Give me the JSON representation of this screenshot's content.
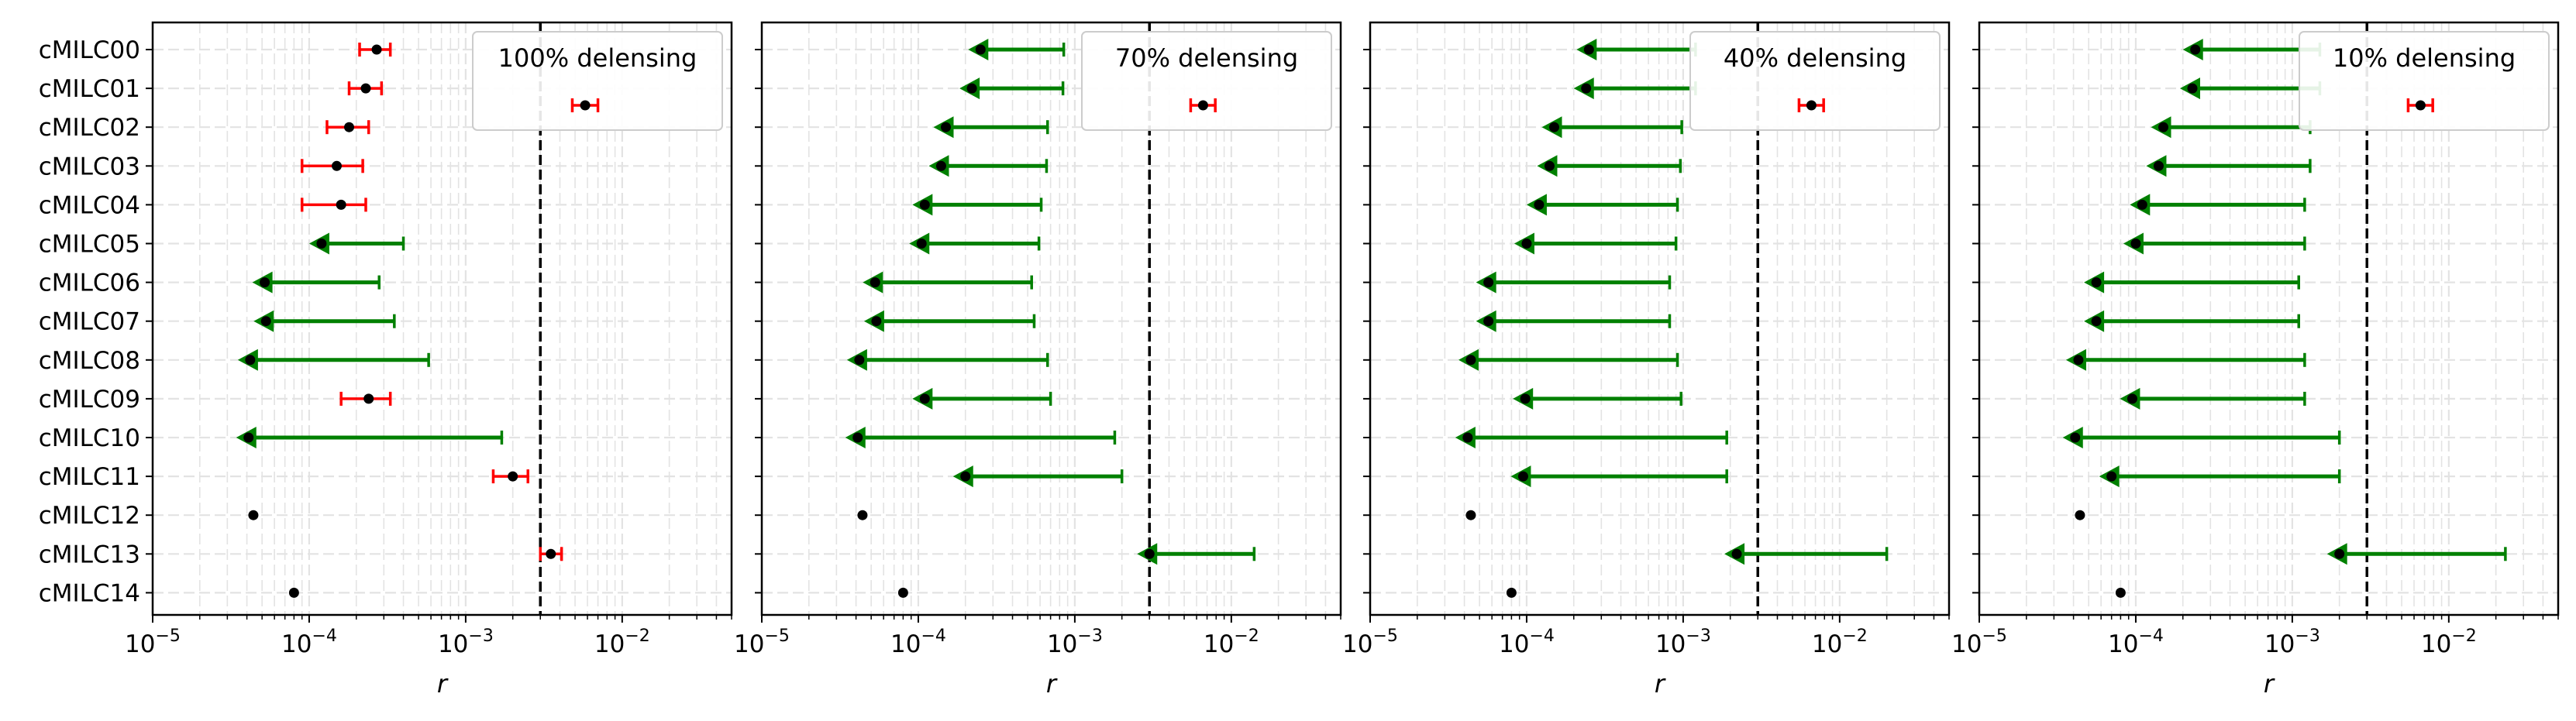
{
  "chart_data": {
    "type": "errorbar-forest",
    "shared": {
      "xscale": "log",
      "xlim": [
        1e-05,
        0.05
      ],
      "xlabel": "r",
      "x_tick_labels": [
        {
          "base": "10",
          "exp": "−5"
        },
        {
          "base": "10",
          "exp": "−4"
        },
        {
          "base": "10",
          "exp": "−3"
        },
        {
          "base": "10",
          "exp": "−2"
        }
      ],
      "reference_line_x": 0.003,
      "reference_line_style": "dashed",
      "categories": [
        "cMILC00",
        "cMILC01",
        "cMILC02",
        "cMILC03",
        "cMILC04",
        "cMILC05",
        "cMILC06",
        "cMILC07",
        "cMILC08",
        "cMILC09",
        "cMILC10",
        "cMILC11",
        "cMILC12",
        "cMILC13",
        "cMILC14"
      ],
      "grid": true,
      "colors": {
        "detection": "#ff0000",
        "upper_limit": "#008000",
        "point": "#000000",
        "reference": "#000000",
        "grid": "#e3e3e3"
      }
    },
    "panels": [
      {
        "legend_label": "100% delensing",
        "legend_position": "top-right",
        "rows": [
          {
            "name": "cMILC00",
            "kind": "detection",
            "value": 0.00027,
            "low": 0.00021,
            "high": 0.00033
          },
          {
            "name": "cMILC01",
            "kind": "detection",
            "value": 0.00023,
            "low": 0.00018,
            "high": 0.00029
          },
          {
            "name": "cMILC02",
            "kind": "detection",
            "value": 0.00018,
            "low": 0.00013,
            "high": 0.00024
          },
          {
            "name": "cMILC03",
            "kind": "detection",
            "value": 0.00015,
            "low": 9e-05,
            "high": 0.00022
          },
          {
            "name": "cMILC04",
            "kind": "detection",
            "value": 0.00016,
            "low": 9e-05,
            "high": 0.00023
          },
          {
            "name": "cMILC05",
            "kind": "upper_limit",
            "value": 0.00012,
            "limit": 0.0004
          },
          {
            "name": "cMILC06",
            "kind": "upper_limit",
            "value": 5.2e-05,
            "limit": 0.00028
          },
          {
            "name": "cMILC07",
            "kind": "upper_limit",
            "value": 5.3e-05,
            "limit": 0.00035
          },
          {
            "name": "cMILC08",
            "kind": "upper_limit",
            "value": 4.2e-05,
            "limit": 0.00058
          },
          {
            "name": "cMILC09",
            "kind": "detection",
            "value": 0.00024,
            "low": 0.00016,
            "high": 0.00033
          },
          {
            "name": "cMILC10",
            "kind": "upper_limit",
            "value": 4.1e-05,
            "limit": 0.0017
          },
          {
            "name": "cMILC11",
            "kind": "detection",
            "value": 0.002,
            "low": 0.0015,
            "high": 0.0025
          },
          {
            "name": "cMILC12",
            "kind": "point",
            "value": 4.4e-05
          },
          {
            "name": "cMILC13",
            "kind": "detection",
            "value": 0.0035,
            "low": 0.003,
            "high": 0.0041
          },
          {
            "name": "cMILC14",
            "kind": "point",
            "value": 8e-05
          }
        ],
        "legend_marker": {
          "kind": "detection",
          "value": 0.0058,
          "low": 0.0048,
          "high": 0.007
        }
      },
      {
        "legend_label": "70% delensing",
        "legend_position": "top-right",
        "rows": [
          {
            "name": "cMILC00",
            "kind": "upper_limit",
            "value": 0.00025,
            "limit": 0.00085
          },
          {
            "name": "cMILC01",
            "kind": "upper_limit",
            "value": 0.00022,
            "limit": 0.00084
          },
          {
            "name": "cMILC02",
            "kind": "upper_limit",
            "value": 0.00015,
            "limit": 0.00067
          },
          {
            "name": "cMILC03",
            "kind": "upper_limit",
            "value": 0.00014,
            "limit": 0.00066
          },
          {
            "name": "cMILC04",
            "kind": "upper_limit",
            "value": 0.00011,
            "limit": 0.00061
          },
          {
            "name": "cMILC05",
            "kind": "upper_limit",
            "value": 0.000105,
            "limit": 0.00059
          },
          {
            "name": "cMILC06",
            "kind": "upper_limit",
            "value": 5.3e-05,
            "limit": 0.00053
          },
          {
            "name": "cMILC07",
            "kind": "upper_limit",
            "value": 5.4e-05,
            "limit": 0.00055
          },
          {
            "name": "cMILC08",
            "kind": "upper_limit",
            "value": 4.2e-05,
            "limit": 0.00067
          },
          {
            "name": "cMILC09",
            "kind": "upper_limit",
            "value": 0.00011,
            "limit": 0.0007
          },
          {
            "name": "cMILC10",
            "kind": "upper_limit",
            "value": 4.1e-05,
            "limit": 0.0018
          },
          {
            "name": "cMILC11",
            "kind": "upper_limit",
            "value": 0.0002,
            "limit": 0.002
          },
          {
            "name": "cMILC12",
            "kind": "point",
            "value": 4.4e-05
          },
          {
            "name": "cMILC13",
            "kind": "upper_limit",
            "value": 0.003,
            "limit": 0.014
          },
          {
            "name": "cMILC14",
            "kind": "point",
            "value": 8e-05
          }
        ],
        "legend_marker": {
          "kind": "detection",
          "value": 0.0066,
          "low": 0.0055,
          "high": 0.0079
        }
      },
      {
        "legend_label": "40% delensing",
        "legend_position": "top-right",
        "rows": [
          {
            "name": "cMILC00",
            "kind": "upper_limit",
            "value": 0.00025,
            "limit": 0.0012
          },
          {
            "name": "cMILC01",
            "kind": "upper_limit",
            "value": 0.00024,
            "limit": 0.0012
          },
          {
            "name": "cMILC02",
            "kind": "upper_limit",
            "value": 0.00015,
            "limit": 0.00098
          },
          {
            "name": "cMILC03",
            "kind": "upper_limit",
            "value": 0.00014,
            "limit": 0.00096
          },
          {
            "name": "cMILC04",
            "kind": "upper_limit",
            "value": 0.00012,
            "limit": 0.00092
          },
          {
            "name": "cMILC05",
            "kind": "upper_limit",
            "value": 0.0001,
            "limit": 0.0009
          },
          {
            "name": "cMILC06",
            "kind": "upper_limit",
            "value": 5.7e-05,
            "limit": 0.00082
          },
          {
            "name": "cMILC07",
            "kind": "upper_limit",
            "value": 5.7e-05,
            "limit": 0.00082
          },
          {
            "name": "cMILC08",
            "kind": "upper_limit",
            "value": 4.4e-05,
            "limit": 0.00092
          },
          {
            "name": "cMILC09",
            "kind": "upper_limit",
            "value": 9.8e-05,
            "limit": 0.00097
          },
          {
            "name": "cMILC10",
            "kind": "upper_limit",
            "value": 4.2e-05,
            "limit": 0.0019
          },
          {
            "name": "cMILC11",
            "kind": "upper_limit",
            "value": 9.5e-05,
            "limit": 0.0019
          },
          {
            "name": "cMILC12",
            "kind": "point",
            "value": 4.4e-05
          },
          {
            "name": "cMILC13",
            "kind": "upper_limit",
            "value": 0.0022,
            "limit": 0.02
          },
          {
            "name": "cMILC14",
            "kind": "point",
            "value": 8e-05
          }
        ],
        "legend_marker": {
          "kind": "detection",
          "value": 0.0066,
          "low": 0.0055,
          "high": 0.0079
        }
      },
      {
        "legend_label": "10% delensing",
        "legend_position": "top-right",
        "rows": [
          {
            "name": "cMILC00",
            "kind": "upper_limit",
            "value": 0.00024,
            "limit": 0.0015
          },
          {
            "name": "cMILC01",
            "kind": "upper_limit",
            "value": 0.00023,
            "limit": 0.0015
          },
          {
            "name": "cMILC02",
            "kind": "upper_limit",
            "value": 0.00015,
            "limit": 0.0013
          },
          {
            "name": "cMILC03",
            "kind": "upper_limit",
            "value": 0.00014,
            "limit": 0.0013
          },
          {
            "name": "cMILC04",
            "kind": "upper_limit",
            "value": 0.00011,
            "limit": 0.0012
          },
          {
            "name": "cMILC05",
            "kind": "upper_limit",
            "value": 0.0001,
            "limit": 0.0012
          },
          {
            "name": "cMILC06",
            "kind": "upper_limit",
            "value": 5.6e-05,
            "limit": 0.0011
          },
          {
            "name": "cMILC07",
            "kind": "upper_limit",
            "value": 5.6e-05,
            "limit": 0.0011
          },
          {
            "name": "cMILC08",
            "kind": "upper_limit",
            "value": 4.3e-05,
            "limit": 0.0012
          },
          {
            "name": "cMILC09",
            "kind": "upper_limit",
            "value": 9.5e-05,
            "limit": 0.0012
          },
          {
            "name": "cMILC10",
            "kind": "upper_limit",
            "value": 4.1e-05,
            "limit": 0.002
          },
          {
            "name": "cMILC11",
            "kind": "upper_limit",
            "value": 7e-05,
            "limit": 0.002
          },
          {
            "name": "cMILC12",
            "kind": "point",
            "value": 4.4e-05
          },
          {
            "name": "cMILC13",
            "kind": "upper_limit",
            "value": 0.002,
            "limit": 0.023
          },
          {
            "name": "cMILC14",
            "kind": "point",
            "value": 8e-05
          }
        ],
        "legend_marker": {
          "kind": "detection",
          "value": 0.0066,
          "low": 0.0055,
          "high": 0.0079
        }
      }
    ]
  }
}
